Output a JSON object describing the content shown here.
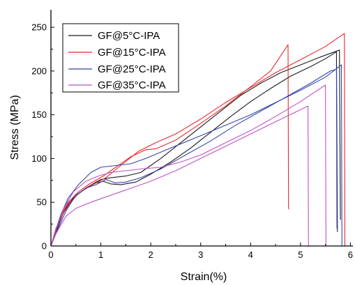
{
  "chart_data": {
    "type": "line",
    "xlabel": "Strain(%)",
    "ylabel": "Stress (MPa)",
    "xlim": [
      0,
      6.05
    ],
    "ylim": [
      0,
      270
    ],
    "xticks": [
      0,
      1,
      2,
      3,
      4,
      5,
      6
    ],
    "yticks": [
      0,
      50,
      100,
      150,
      200,
      250
    ],
    "legend_position": "top-left",
    "grid": false,
    "series": [
      {
        "name": "GF@5°C-IPA",
        "color": "#1a1a1a",
        "points": [
          [
            0,
            0
          ],
          [
            0.08,
            12
          ],
          [
            0.2,
            32
          ],
          [
            0.35,
            48
          ],
          [
            0.5,
            58
          ],
          [
            0.7,
            66
          ],
          [
            0.9,
            72
          ],
          [
            1.05,
            74
          ],
          [
            1.2,
            71
          ],
          [
            1.4,
            70
          ],
          [
            1.7,
            73
          ],
          [
            2.0,
            82
          ],
          [
            2.4,
            96
          ],
          [
            2.8,
            112
          ],
          [
            3.2,
            130
          ],
          [
            3.6,
            148
          ],
          [
            4.0,
            165
          ],
          [
            4.4,
            180
          ],
          [
            4.8,
            194
          ],
          [
            5.2,
            205
          ],
          [
            5.5,
            214
          ],
          [
            5.72,
            222
          ],
          [
            5.74,
            16
          ]
        ],
        "points_b": [
          [
            0,
            0
          ],
          [
            0.1,
            16
          ],
          [
            0.25,
            38
          ],
          [
            0.45,
            55
          ],
          [
            0.7,
            66
          ],
          [
            0.9,
            73
          ],
          [
            1.0,
            76
          ],
          [
            1.2,
            78
          ],
          [
            1.5,
            80
          ],
          [
            1.8,
            84
          ],
          [
            2.2,
            100
          ],
          [
            2.6,
            118
          ],
          [
            3.0,
            136
          ],
          [
            3.4,
            154
          ],
          [
            3.8,
            172
          ],
          [
            4.2,
            186
          ],
          [
            4.6,
            198
          ],
          [
            5.0,
            207
          ],
          [
            5.4,
            216
          ],
          [
            5.78,
            224
          ],
          [
            5.8,
            30
          ]
        ]
      },
      {
        "name": "GF@15°C-IPA",
        "color": "#e8282c",
        "points": [
          [
            0,
            0
          ],
          [
            0.08,
            14
          ],
          [
            0.2,
            35
          ],
          [
            0.35,
            50
          ],
          [
            0.55,
            62
          ],
          [
            0.8,
            72
          ],
          [
            1.05,
            80
          ],
          [
            1.3,
            90
          ],
          [
            1.6,
            102
          ],
          [
            1.9,
            110
          ],
          [
            2.1,
            111
          ],
          [
            2.5,
            121
          ],
          [
            3.0,
            140
          ],
          [
            3.5,
            160
          ],
          [
            4.0,
            182
          ],
          [
            4.4,
            200
          ],
          [
            4.75,
            230
          ],
          [
            4.76,
            42
          ]
        ],
        "points_b": [
          [
            0,
            0
          ],
          [
            0.1,
            20
          ],
          [
            0.3,
            44
          ],
          [
            0.55,
            60
          ],
          [
            0.8,
            69
          ],
          [
            1.1,
            78
          ],
          [
            1.4,
            92
          ],
          [
            1.75,
            108
          ],
          [
            2.1,
            118
          ],
          [
            2.5,
            128
          ],
          [
            3.0,
            145
          ],
          [
            3.5,
            164
          ],
          [
            4.0,
            181
          ],
          [
            4.5,
            198
          ],
          [
            5.0,
            213
          ],
          [
            5.5,
            228
          ],
          [
            5.88,
            243
          ],
          [
            5.89,
            0
          ]
        ]
      },
      {
        "name": "GF@25°C-IPA",
        "color": "#3346a8",
        "points": [
          [
            0,
            0
          ],
          [
            0.08,
            15
          ],
          [
            0.2,
            36
          ],
          [
            0.35,
            55
          ],
          [
            0.55,
            70
          ],
          [
            0.8,
            84
          ],
          [
            1.0,
            90
          ],
          [
            1.3,
            92
          ],
          [
            1.6,
            94
          ],
          [
            1.9,
            100
          ],
          [
            2.4,
            112
          ],
          [
            3.0,
            126
          ],
          [
            3.5,
            138
          ],
          [
            4.0,
            150
          ],
          [
            4.5,
            164
          ],
          [
            5.0,
            178
          ],
          [
            5.5,
            193
          ],
          [
            5.82,
            207
          ],
          [
            5.83,
            0
          ]
        ],
        "points_b": [
          [
            0,
            0
          ],
          [
            0.1,
            14
          ],
          [
            0.3,
            40
          ],
          [
            0.5,
            58
          ],
          [
            0.7,
            66
          ],
          [
            0.9,
            70
          ],
          [
            1.1,
            76
          ],
          [
            1.3,
            72
          ],
          [
            1.5,
            73
          ],
          [
            1.8,
            78
          ],
          [
            2.2,
            88
          ],
          [
            2.7,
            104
          ],
          [
            3.2,
            120
          ],
          [
            3.7,
            138
          ],
          [
            4.2,
            154
          ],
          [
            4.7,
            170
          ],
          [
            5.2,
            186
          ],
          [
            5.6,
            200
          ],
          [
            5.72,
            202
          ],
          [
            5.73,
            20
          ]
        ]
      },
      {
        "name": "GF@35°C-IPA",
        "color": "#c050c8",
        "points": [
          [
            0,
            0
          ],
          [
            0.1,
            14
          ],
          [
            0.3,
            34
          ],
          [
            0.5,
            43
          ],
          [
            0.8,
            50
          ],
          [
            1.1,
            56
          ],
          [
            1.4,
            62
          ],
          [
            1.7,
            68
          ],
          [
            2.0,
            74
          ],
          [
            2.5,
            86
          ],
          [
            3.0,
            100
          ],
          [
            3.5,
            114
          ],
          [
            4.0,
            128
          ],
          [
            4.5,
            142
          ],
          [
            5.15,
            160
          ],
          [
            5.16,
            0
          ]
        ],
        "points_b": [
          [
            0,
            0
          ],
          [
            0.1,
            18
          ],
          [
            0.25,
            42
          ],
          [
            0.45,
            62
          ],
          [
            0.7,
            74
          ],
          [
            0.95,
            80
          ],
          [
            1.2,
            84
          ],
          [
            1.5,
            86
          ],
          [
            1.8,
            88
          ],
          [
            2.2,
            90
          ],
          [
            2.6,
            96
          ],
          [
            3.0,
            104
          ],
          [
            3.5,
            118
          ],
          [
            4.0,
            132
          ],
          [
            4.5,
            148
          ],
          [
            5.0,
            165
          ],
          [
            5.5,
            184
          ],
          [
            5.51,
            0
          ]
        ]
      }
    ]
  }
}
